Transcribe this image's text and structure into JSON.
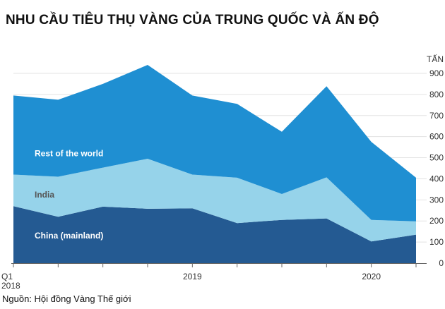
{
  "header": {
    "title": "NHU CẦU TIÊU THỤ VÀNG CỦA TRUNG QUỐC VÀ ẤN ĐỘ"
  },
  "footer": {
    "source": "Nguồn: Hội đồng Vàng Thế giới"
  },
  "colors": {
    "china": "#245a92",
    "india": "#96d3ea",
    "rest": "#1f8fd2",
    "grid": "#e3e3e3",
    "axis": "#666666"
  },
  "chart_data": {
    "type": "area",
    "stacked": true,
    "title": "NHU CẦU TIÊU THỤ VÀNG CỦA TRUNG QUỐC VÀ ẤN ĐỘ",
    "unit_label": "TẤN",
    "x": [
      "Q1 2018",
      "Q2 2018",
      "Q3 2018",
      "Q4 2018",
      "Q1 2019",
      "Q2 2019",
      "Q3 2019",
      "Q4 2019",
      "Q1 2020",
      "Q2 2020"
    ],
    "x_tick_labels": [
      {
        "index": 0,
        "lines": [
          "Q1",
          "2018"
        ]
      },
      {
        "index": 4,
        "lines": [
          "2019"
        ]
      },
      {
        "index": 8,
        "lines": [
          "2020"
        ]
      }
    ],
    "ylim": [
      0,
      900
    ],
    "yticks": [
      0,
      100,
      200,
      300,
      400,
      500,
      600,
      700,
      800,
      900
    ],
    "series": [
      {
        "name": "China (mainland)",
        "label": "China (mainland)",
        "label_color": "#ffffff",
        "label_anchor": {
          "index": 0,
          "value": 130
        },
        "values": [
          270,
          220,
          268,
          258,
          260,
          190,
          205,
          212,
          103,
          135
        ]
      },
      {
        "name": "India",
        "label": "India",
        "label_color": "#555555",
        "label_anchor": {
          "index": 0,
          "value": 325
        },
        "values": [
          150,
          190,
          185,
          237,
          160,
          215,
          123,
          195,
          102,
          63
        ]
      },
      {
        "name": "Rest of the world",
        "label": "Rest of the world",
        "label_color": "#ffffff",
        "label_anchor": {
          "index": 0,
          "value": 520
        },
        "values": [
          375,
          365,
          397,
          445,
          375,
          350,
          295,
          432,
          370,
          207
        ]
      }
    ]
  }
}
